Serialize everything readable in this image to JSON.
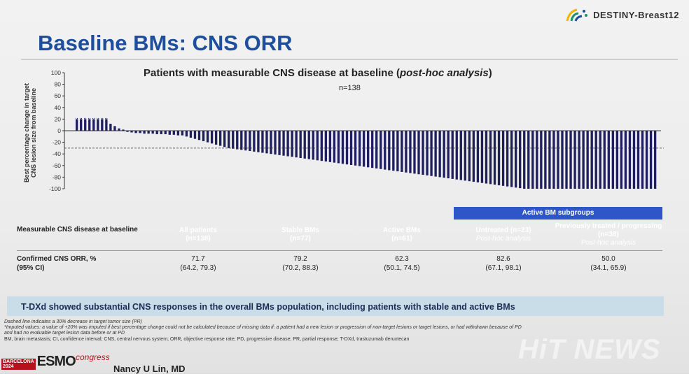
{
  "logo": {
    "text": "DESTINY-Breast12",
    "colors": [
      "#f2b400",
      "#1d8f6b",
      "#1d4f9e"
    ]
  },
  "slide": {
    "title": "Baseline BMs: CNS ORR"
  },
  "chart": {
    "title_main": "Patients with measurable CNS disease at baseline (",
    "title_italic": "post-hoc analysis",
    "title_end": ")",
    "n_label": "n=138",
    "ylabel_line1": "Best percentage change in target",
    "ylabel_line2": "CNS lesion size from baseline"
  },
  "chart_data": {
    "type": "bar",
    "ylabel": "Best percentage change in target CNS lesion size from baseline",
    "ylim": [
      -100,
      100
    ],
    "yticks": [
      100,
      80,
      60,
      40,
      20,
      0,
      -20,
      -40,
      -60,
      -80,
      -100
    ],
    "reference_line": -30,
    "n_bars": 138,
    "values_sorted_descending": [
      20,
      20,
      20,
      20,
      20,
      20,
      20,
      20,
      12,
      8,
      4,
      2,
      -2,
      -3,
      -4,
      -4,
      -5,
      -5,
      -5,
      -6,
      -6,
      -6,
      -7,
      -7,
      -8,
      -8,
      -10,
      -12,
      -14,
      -16,
      -18,
      -20,
      -22,
      -24,
      -26,
      -28,
      -30,
      -31,
      -32,
      -33,
      -34,
      -35,
      -36,
      -37,
      -38,
      -39,
      -40,
      -41,
      -42,
      -43,
      -44,
      -45,
      -46,
      -47,
      -48,
      -49,
      -50,
      -51,
      -52,
      -53,
      -54,
      -55,
      -56,
      -57,
      -58,
      -59,
      -60,
      -61,
      -62,
      -63,
      -64,
      -65,
      -66,
      -67,
      -68,
      -69,
      -70,
      -71,
      -72,
      -73,
      -74,
      -75,
      -76,
      -77,
      -78,
      -79,
      -80,
      -81,
      -82,
      -83,
      -84,
      -85,
      -86,
      -87,
      -88,
      -89,
      -90,
      -91,
      -92,
      -93,
      -94,
      -95,
      -96,
      -97,
      -98,
      -99,
      -100,
      -100,
      -100,
      -100,
      -100,
      -100,
      -100,
      -100,
      -100,
      -100,
      -100,
      -100,
      -100,
      -100,
      -100,
      -100,
      -100,
      -100,
      -100,
      -100,
      -100,
      -100,
      -100,
      -100,
      -100,
      -100,
      -100,
      -100,
      -100,
      -100,
      -100,
      -100
    ],
    "colors": {
      "bars": "#1f1f5e",
      "imputed": "#1f1f5e"
    }
  },
  "table": {
    "active_group_label": "Active BM subgroups",
    "row1_label": "Measurable CNS disease at baseline",
    "row2_label_line1": "Confirmed CNS ORR, %",
    "row2_label_line2": "(95% CI)",
    "columns": [
      {
        "name": "All patients",
        "n": "(n=138)",
        "orr": "71.7",
        "ci": "(64.2, 79.3)",
        "color": "#3b2d8f"
      },
      {
        "name": "Stable BMs",
        "n": "(n=77)",
        "orr": "79.2",
        "ci": "(70.2, 88.3)",
        "color": "#7cc242"
      },
      {
        "name": "Active BMs",
        "n": "(n=61)",
        "orr": "62.3",
        "ci": "(50.1, 74.5)",
        "color": "#2e56c8"
      },
      {
        "name": "Untreated (n=23)",
        "n": "Post-hoc analysis",
        "orr": "82.6",
        "ci": "(67.1, 98.1)",
        "color": "#3d8fe0"
      },
      {
        "name": "Previously treated / progressing (n=38)",
        "n": "Post-hoc analysis",
        "orr": "50.0",
        "ci": "(34.1, 65.9)",
        "color": "#3d8fe0"
      }
    ]
  },
  "banner": {
    "text": "T-DXd showed substantial CNS responses in the overall BMs population, including patients with stable and active BMs"
  },
  "footnotes": {
    "line1": "Dashed line indicates a 30% decrease in target tumor size (PR)",
    "line2": "*Imputed values: a value of +20% was imputed if best percentage change could not be calculated because of missing data if: a patient had a new lesion or progression of non-target lesions or target lesions, or had withdrawn because of PD",
    "line3": "and had no evaluable target lesion data before or at PD",
    "line4": "BM, brain metastasis; CI, confidence interval; CNS, central nervous system; ORR, objective response rate; PD, progressive disease; PR, partial response; T-DXd, trastuzumab deruxtecan"
  },
  "congress": {
    "city": "BARCELONA",
    "year": "2024",
    "name": "ESMO",
    "word": "congress"
  },
  "presenter": {
    "name": "Nancy U Lin, MD"
  },
  "watermark": {
    "text": "HiT NEWS"
  }
}
